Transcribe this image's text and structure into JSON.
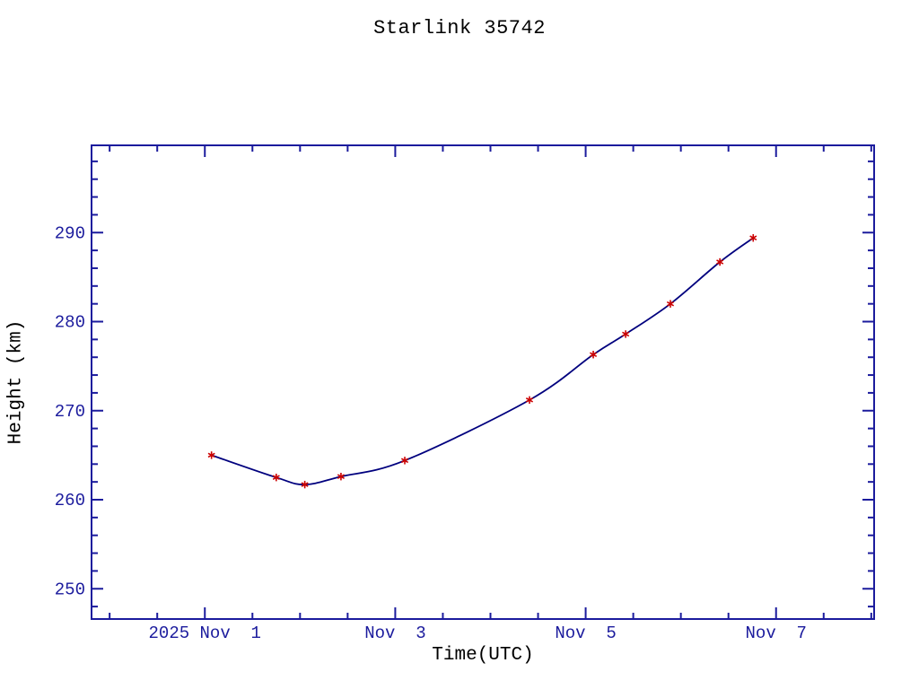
{
  "chart_data": {
    "type": "line",
    "title": "Starlink 35742",
    "xlabel": "Time(UTC)",
    "ylabel": "Height (km)",
    "x_unit": "days since 2025 Nov 1 00:00 UTC",
    "x": [
      0.07,
      0.75,
      1.05,
      1.43,
      2.1,
      3.41,
      4.08,
      4.42,
      4.89,
      5.41,
      5.76
    ],
    "y": [
      265.0,
      262.5,
      261.7,
      262.6,
      264.4,
      271.2,
      276.3,
      278.6,
      282.0,
      286.7,
      289.4
    ],
    "xlim": [
      -1.19,
      7.03
    ],
    "ylim": [
      246.6,
      299.8
    ],
    "x_major_ticks": [
      {
        "value": 0,
        "label": "2025 Nov  1"
      },
      {
        "value": 2,
        "label": "Nov  3"
      },
      {
        "value": 4,
        "label": "Nov  5"
      },
      {
        "value": 6,
        "label": "Nov  7"
      }
    ],
    "x_minor_step": 0.5,
    "y_major_ticks": [
      {
        "value": 250,
        "label": "250"
      },
      {
        "value": 260,
        "label": "260"
      },
      {
        "value": 270,
        "label": "270"
      },
      {
        "value": 280,
        "label": "280"
      },
      {
        "value": 290,
        "label": "290"
      }
    ],
    "y_minor_step": 2,
    "grid": false,
    "legend": null,
    "marker": "asterisk",
    "tick_style": "inward, mirrored on all four box sides",
    "colors": {
      "axis": "#1b1b9d",
      "text": "#1b1b9d",
      "line": "#00007e",
      "marker": "#cc0000",
      "background": "#ffffff"
    }
  }
}
